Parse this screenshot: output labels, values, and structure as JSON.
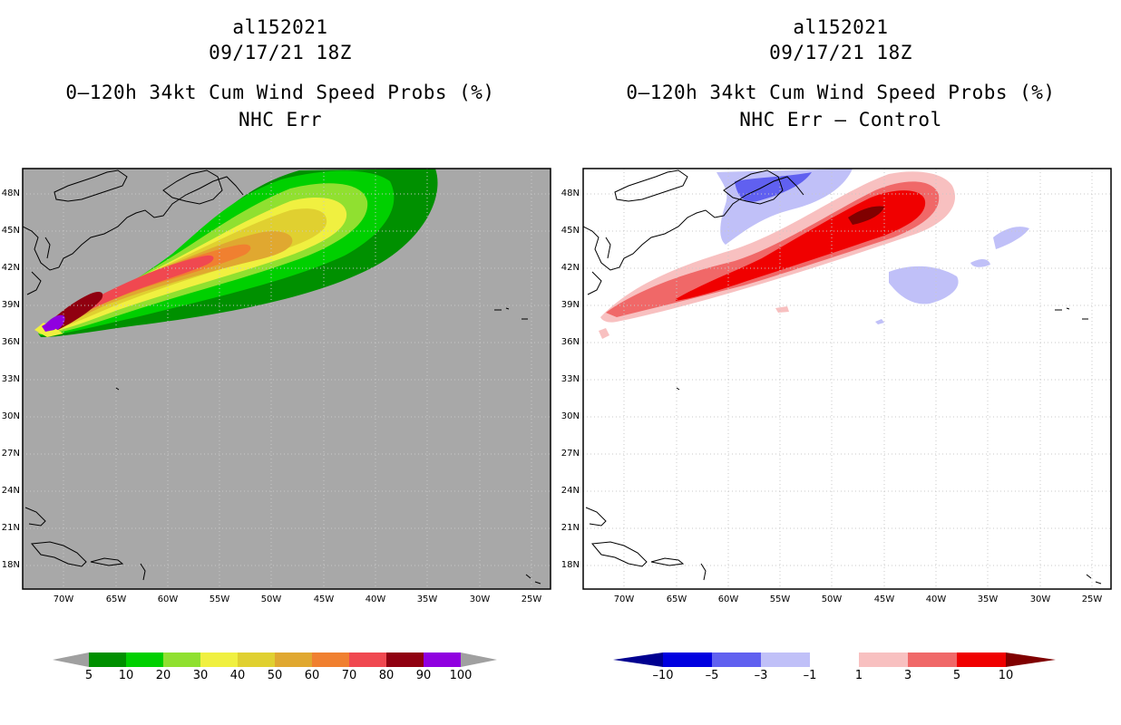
{
  "panels": [
    {
      "storm_id": "al152021",
      "datetime": "09/17/21 18Z",
      "product": "0–120h 34kt Cum Wind Speed Probs (%)",
      "subtitle": "NHC Err"
    },
    {
      "storm_id": "al152021",
      "datetime": "09/17/21 18Z",
      "product": "0–120h 34kt Cum Wind Speed Probs (%)",
      "subtitle": "NHC Err – Control"
    }
  ],
  "axes": {
    "lat_labels": [
      "48N",
      "45N",
      "42N",
      "39N",
      "36N",
      "33N",
      "30N",
      "27N",
      "24N",
      "21N",
      "18N"
    ],
    "lon_labels": [
      "70W",
      "65W",
      "60W",
      "55W",
      "50W",
      "45W",
      "40W",
      "35W",
      "30W",
      "25W"
    ]
  },
  "colorbars": {
    "left": {
      "labels": [
        "5",
        "10",
        "20",
        "30",
        "40",
        "50",
        "60",
        "70",
        "80",
        "90",
        "100"
      ],
      "colors": [
        "#009000",
        "#00d000",
        "#90e030",
        "#f0f040",
        "#e0d030",
        "#e0a830",
        "#f08030",
        "#f04850",
        "#900010",
        "#9000e0"
      ],
      "end_colors": [
        "#a0a0a0",
        "#a0a0a0"
      ]
    },
    "right": {
      "labels": [
        "–10",
        "–5",
        "–3",
        "–1",
        "1",
        "3",
        "5",
        "10"
      ],
      "colors": [
        "#0000e0",
        "#6060f0",
        "#c0c0f8",
        "#ffffff",
        "#f8c0c0",
        "#f06868",
        "#f00000"
      ],
      "end_colors": [
        "#000090",
        "#800000"
      ]
    }
  },
  "legend_colors": {
    "land_bg": "#a8a8a8",
    "grid": "#c8c8c8"
  }
}
